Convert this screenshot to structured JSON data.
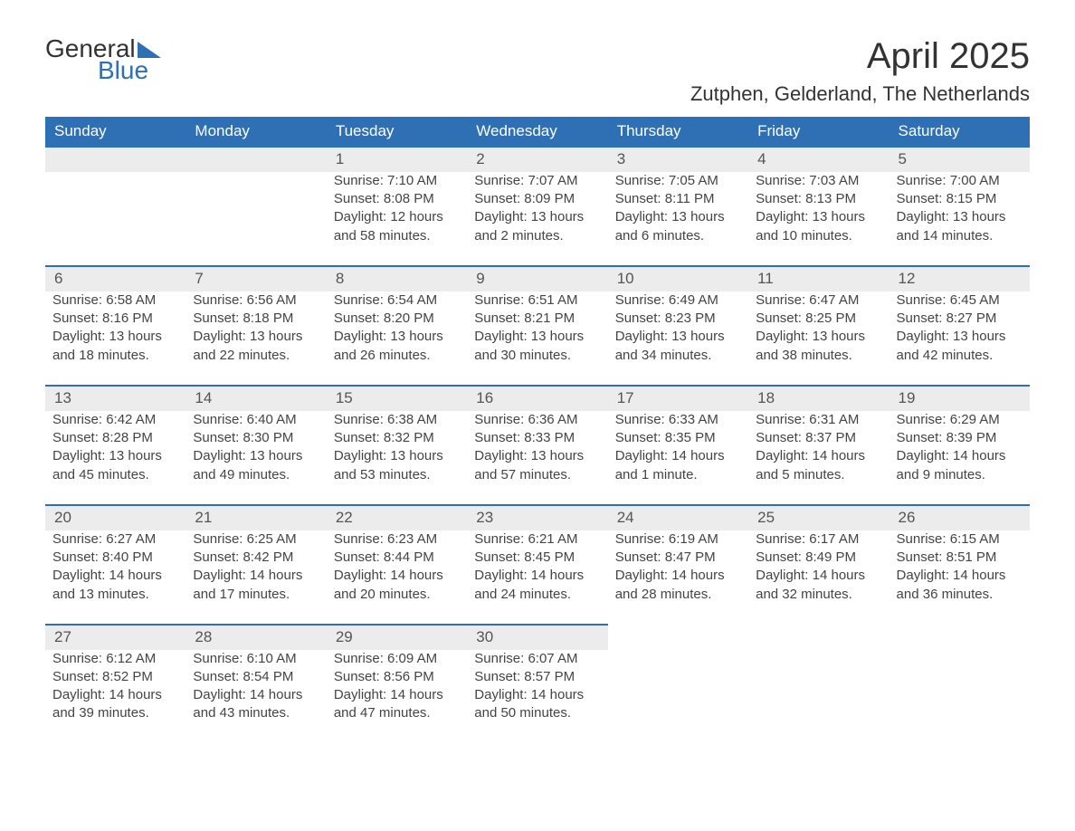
{
  "logo": {
    "word1": "General",
    "word2": "Blue",
    "flag_color": "#2f6fb3"
  },
  "title": "April 2025",
  "location": "Zutphen, Gelderland, The Netherlands",
  "colors": {
    "header_bg": "#2f6fb3",
    "header_text": "#ffffff",
    "daynum_bg": "#ececec",
    "daynum_border": "#2f6fb3",
    "body_bg": "#ffffff",
    "text": "#444444"
  },
  "weekdays": [
    "Sunday",
    "Monday",
    "Tuesday",
    "Wednesday",
    "Thursday",
    "Friday",
    "Saturday"
  ],
  "weeks": [
    [
      null,
      null,
      {
        "n": "1",
        "sunrise": "7:10 AM",
        "sunset": "8:08 PM",
        "daylight": "12 hours and 58 minutes."
      },
      {
        "n": "2",
        "sunrise": "7:07 AM",
        "sunset": "8:09 PM",
        "daylight": "13 hours and 2 minutes."
      },
      {
        "n": "3",
        "sunrise": "7:05 AM",
        "sunset": "8:11 PM",
        "daylight": "13 hours and 6 minutes."
      },
      {
        "n": "4",
        "sunrise": "7:03 AM",
        "sunset": "8:13 PM",
        "daylight": "13 hours and 10 minutes."
      },
      {
        "n": "5",
        "sunrise": "7:00 AM",
        "sunset": "8:15 PM",
        "daylight": "13 hours and 14 minutes."
      }
    ],
    [
      {
        "n": "6",
        "sunrise": "6:58 AM",
        "sunset": "8:16 PM",
        "daylight": "13 hours and 18 minutes."
      },
      {
        "n": "7",
        "sunrise": "6:56 AM",
        "sunset": "8:18 PM",
        "daylight": "13 hours and 22 minutes."
      },
      {
        "n": "8",
        "sunrise": "6:54 AM",
        "sunset": "8:20 PM",
        "daylight": "13 hours and 26 minutes."
      },
      {
        "n": "9",
        "sunrise": "6:51 AM",
        "sunset": "8:21 PM",
        "daylight": "13 hours and 30 minutes."
      },
      {
        "n": "10",
        "sunrise": "6:49 AM",
        "sunset": "8:23 PM",
        "daylight": "13 hours and 34 minutes."
      },
      {
        "n": "11",
        "sunrise": "6:47 AM",
        "sunset": "8:25 PM",
        "daylight": "13 hours and 38 minutes."
      },
      {
        "n": "12",
        "sunrise": "6:45 AM",
        "sunset": "8:27 PM",
        "daylight": "13 hours and 42 minutes."
      }
    ],
    [
      {
        "n": "13",
        "sunrise": "6:42 AM",
        "sunset": "8:28 PM",
        "daylight": "13 hours and 45 minutes."
      },
      {
        "n": "14",
        "sunrise": "6:40 AM",
        "sunset": "8:30 PM",
        "daylight": "13 hours and 49 minutes."
      },
      {
        "n": "15",
        "sunrise": "6:38 AM",
        "sunset": "8:32 PM",
        "daylight": "13 hours and 53 minutes."
      },
      {
        "n": "16",
        "sunrise": "6:36 AM",
        "sunset": "8:33 PM",
        "daylight": "13 hours and 57 minutes."
      },
      {
        "n": "17",
        "sunrise": "6:33 AM",
        "sunset": "8:35 PM",
        "daylight": "14 hours and 1 minute."
      },
      {
        "n": "18",
        "sunrise": "6:31 AM",
        "sunset": "8:37 PM",
        "daylight": "14 hours and 5 minutes."
      },
      {
        "n": "19",
        "sunrise": "6:29 AM",
        "sunset": "8:39 PM",
        "daylight": "14 hours and 9 minutes."
      }
    ],
    [
      {
        "n": "20",
        "sunrise": "6:27 AM",
        "sunset": "8:40 PM",
        "daylight": "14 hours and 13 minutes."
      },
      {
        "n": "21",
        "sunrise": "6:25 AM",
        "sunset": "8:42 PM",
        "daylight": "14 hours and 17 minutes."
      },
      {
        "n": "22",
        "sunrise": "6:23 AM",
        "sunset": "8:44 PM",
        "daylight": "14 hours and 20 minutes."
      },
      {
        "n": "23",
        "sunrise": "6:21 AM",
        "sunset": "8:45 PM",
        "daylight": "14 hours and 24 minutes."
      },
      {
        "n": "24",
        "sunrise": "6:19 AM",
        "sunset": "8:47 PM",
        "daylight": "14 hours and 28 minutes."
      },
      {
        "n": "25",
        "sunrise": "6:17 AM",
        "sunset": "8:49 PM",
        "daylight": "14 hours and 32 minutes."
      },
      {
        "n": "26",
        "sunrise": "6:15 AM",
        "sunset": "8:51 PM",
        "daylight": "14 hours and 36 minutes."
      }
    ],
    [
      {
        "n": "27",
        "sunrise": "6:12 AM",
        "sunset": "8:52 PM",
        "daylight": "14 hours and 39 minutes."
      },
      {
        "n": "28",
        "sunrise": "6:10 AM",
        "sunset": "8:54 PM",
        "daylight": "14 hours and 43 minutes."
      },
      {
        "n": "29",
        "sunrise": "6:09 AM",
        "sunset": "8:56 PM",
        "daylight": "14 hours and 47 minutes."
      },
      {
        "n": "30",
        "sunrise": "6:07 AM",
        "sunset": "8:57 PM",
        "daylight": "14 hours and 50 minutes."
      },
      null,
      null,
      null
    ]
  ],
  "labels": {
    "sunrise": "Sunrise: ",
    "sunset": "Sunset: ",
    "daylight": "Daylight: "
  }
}
